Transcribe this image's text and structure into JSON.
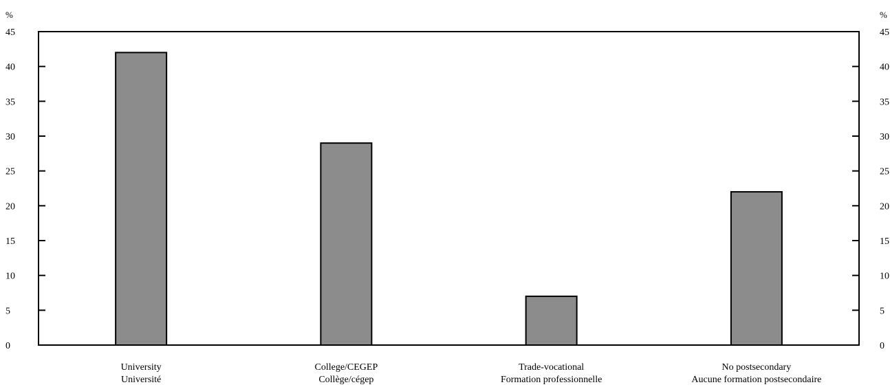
{
  "chart_data": {
    "type": "bar",
    "title": "",
    "xlabel": "",
    "ylabel": "%",
    "ylabel_right": "%",
    "ylim": [
      0,
      45
    ],
    "y_ticks": [
      0,
      5,
      10,
      15,
      20,
      25,
      30,
      35,
      40,
      45
    ],
    "grid": false,
    "legend": "none",
    "bar_color": "#8c8c8c",
    "bar_edge_color": "#000000",
    "categories": [
      {
        "label_en": "University",
        "label_fr": "Université"
      },
      {
        "label_en": "College/CEGEP",
        "label_fr": "Collège/cégep"
      },
      {
        "label_en": "Trade-vocational",
        "label_fr": "Formation professionnelle"
      },
      {
        "label_en": "No postsecondary",
        "label_fr": "Aucune formation postsecondaire"
      }
    ],
    "values": [
      42,
      29,
      7,
      22
    ]
  }
}
